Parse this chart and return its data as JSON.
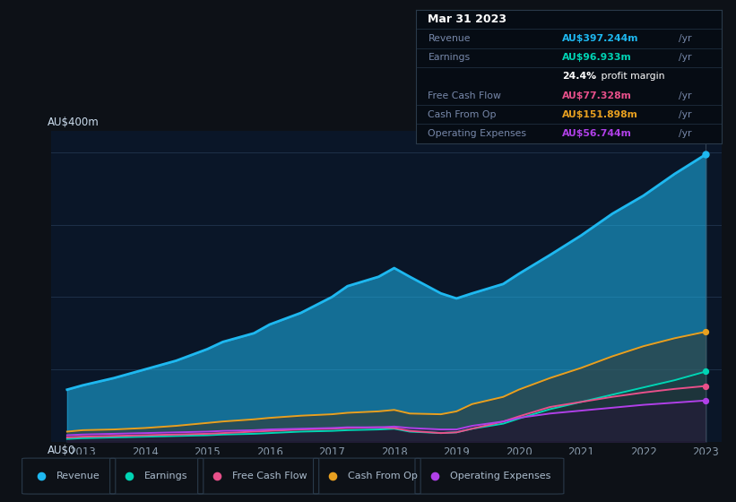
{
  "bg_color": "#0d1117",
  "plot_bg_color": "#0a1628",
  "title": "Mar 31 2023",
  "years": [
    2012.75,
    2013,
    2013.5,
    2014,
    2014.5,
    2015,
    2015.25,
    2015.75,
    2016,
    2016.5,
    2017,
    2017.25,
    2017.75,
    2018,
    2018.25,
    2018.75,
    2019,
    2019.25,
    2019.75,
    2020,
    2020.5,
    2021,
    2021.5,
    2022,
    2022.5,
    2023
  ],
  "revenue": [
    72,
    78,
    88,
    100,
    112,
    128,
    138,
    150,
    162,
    178,
    200,
    215,
    228,
    240,
    228,
    205,
    198,
    205,
    218,
    232,
    258,
    285,
    315,
    340,
    370,
    397
  ],
  "earnings": [
    4,
    5,
    6,
    7,
    8,
    9,
    10,
    11,
    12,
    14,
    15,
    16,
    17,
    18,
    14,
    12,
    13,
    18,
    25,
    32,
    45,
    55,
    65,
    75,
    85,
    97
  ],
  "free_cash_flow": [
    6,
    7,
    8,
    9,
    10,
    11,
    12,
    14,
    15,
    17,
    18,
    19,
    20,
    19,
    15,
    12,
    13,
    18,
    28,
    35,
    48,
    55,
    62,
    68,
    73,
    77
  ],
  "cash_from_op": [
    14,
    16,
    17,
    19,
    22,
    26,
    28,
    31,
    33,
    36,
    38,
    40,
    42,
    44,
    39,
    38,
    42,
    52,
    62,
    72,
    88,
    102,
    118,
    132,
    143,
    152
  ],
  "op_expenses": [
    9,
    10,
    11,
    12,
    13,
    14,
    15,
    16,
    17,
    18,
    19,
    20,
    20,
    21,
    19,
    17,
    17,
    22,
    28,
    33,
    39,
    43,
    47,
    51,
    54,
    57
  ],
  "revenue_color": "#1eb8f0",
  "earnings_color": "#00d4b4",
  "free_cash_flow_color": "#e8508a",
  "cash_from_op_color": "#e8a020",
  "op_expenses_color": "#b040e8",
  "ylim": [
    0,
    430
  ],
  "xtick_labels": [
    "2013",
    "2014",
    "2015",
    "2016",
    "2017",
    "2018",
    "2019",
    "2020",
    "2021",
    "2022",
    "2023"
  ],
  "xtick_positions": [
    2013,
    2014,
    2015,
    2016,
    2017,
    2018,
    2019,
    2020,
    2021,
    2022,
    2023
  ],
  "tooltip": {
    "date": "Mar 31 2023",
    "revenue_label": "Revenue",
    "revenue_val": "AU$397.244m",
    "earnings_label": "Earnings",
    "earnings_val": "AU$96.933m",
    "profit_margin": "24.4% profit margin",
    "fcf_label": "Free Cash Flow",
    "fcf_val": "AU$77.328m",
    "cfop_label": "Cash From Op",
    "cfop_val": "AU$151.898m",
    "opex_label": "Operating Expenses",
    "opex_val": "AU$56.744m"
  },
  "legend_items": [
    {
      "label": "Revenue",
      "color": "#1eb8f0"
    },
    {
      "label": "Earnings",
      "color": "#00d4b4"
    },
    {
      "label": "Free Cash Flow",
      "color": "#e8508a"
    },
    {
      "label": "Cash From Op",
      "color": "#e8a020"
    },
    {
      "label": "Operating Expenses",
      "color": "#b040e8"
    }
  ]
}
